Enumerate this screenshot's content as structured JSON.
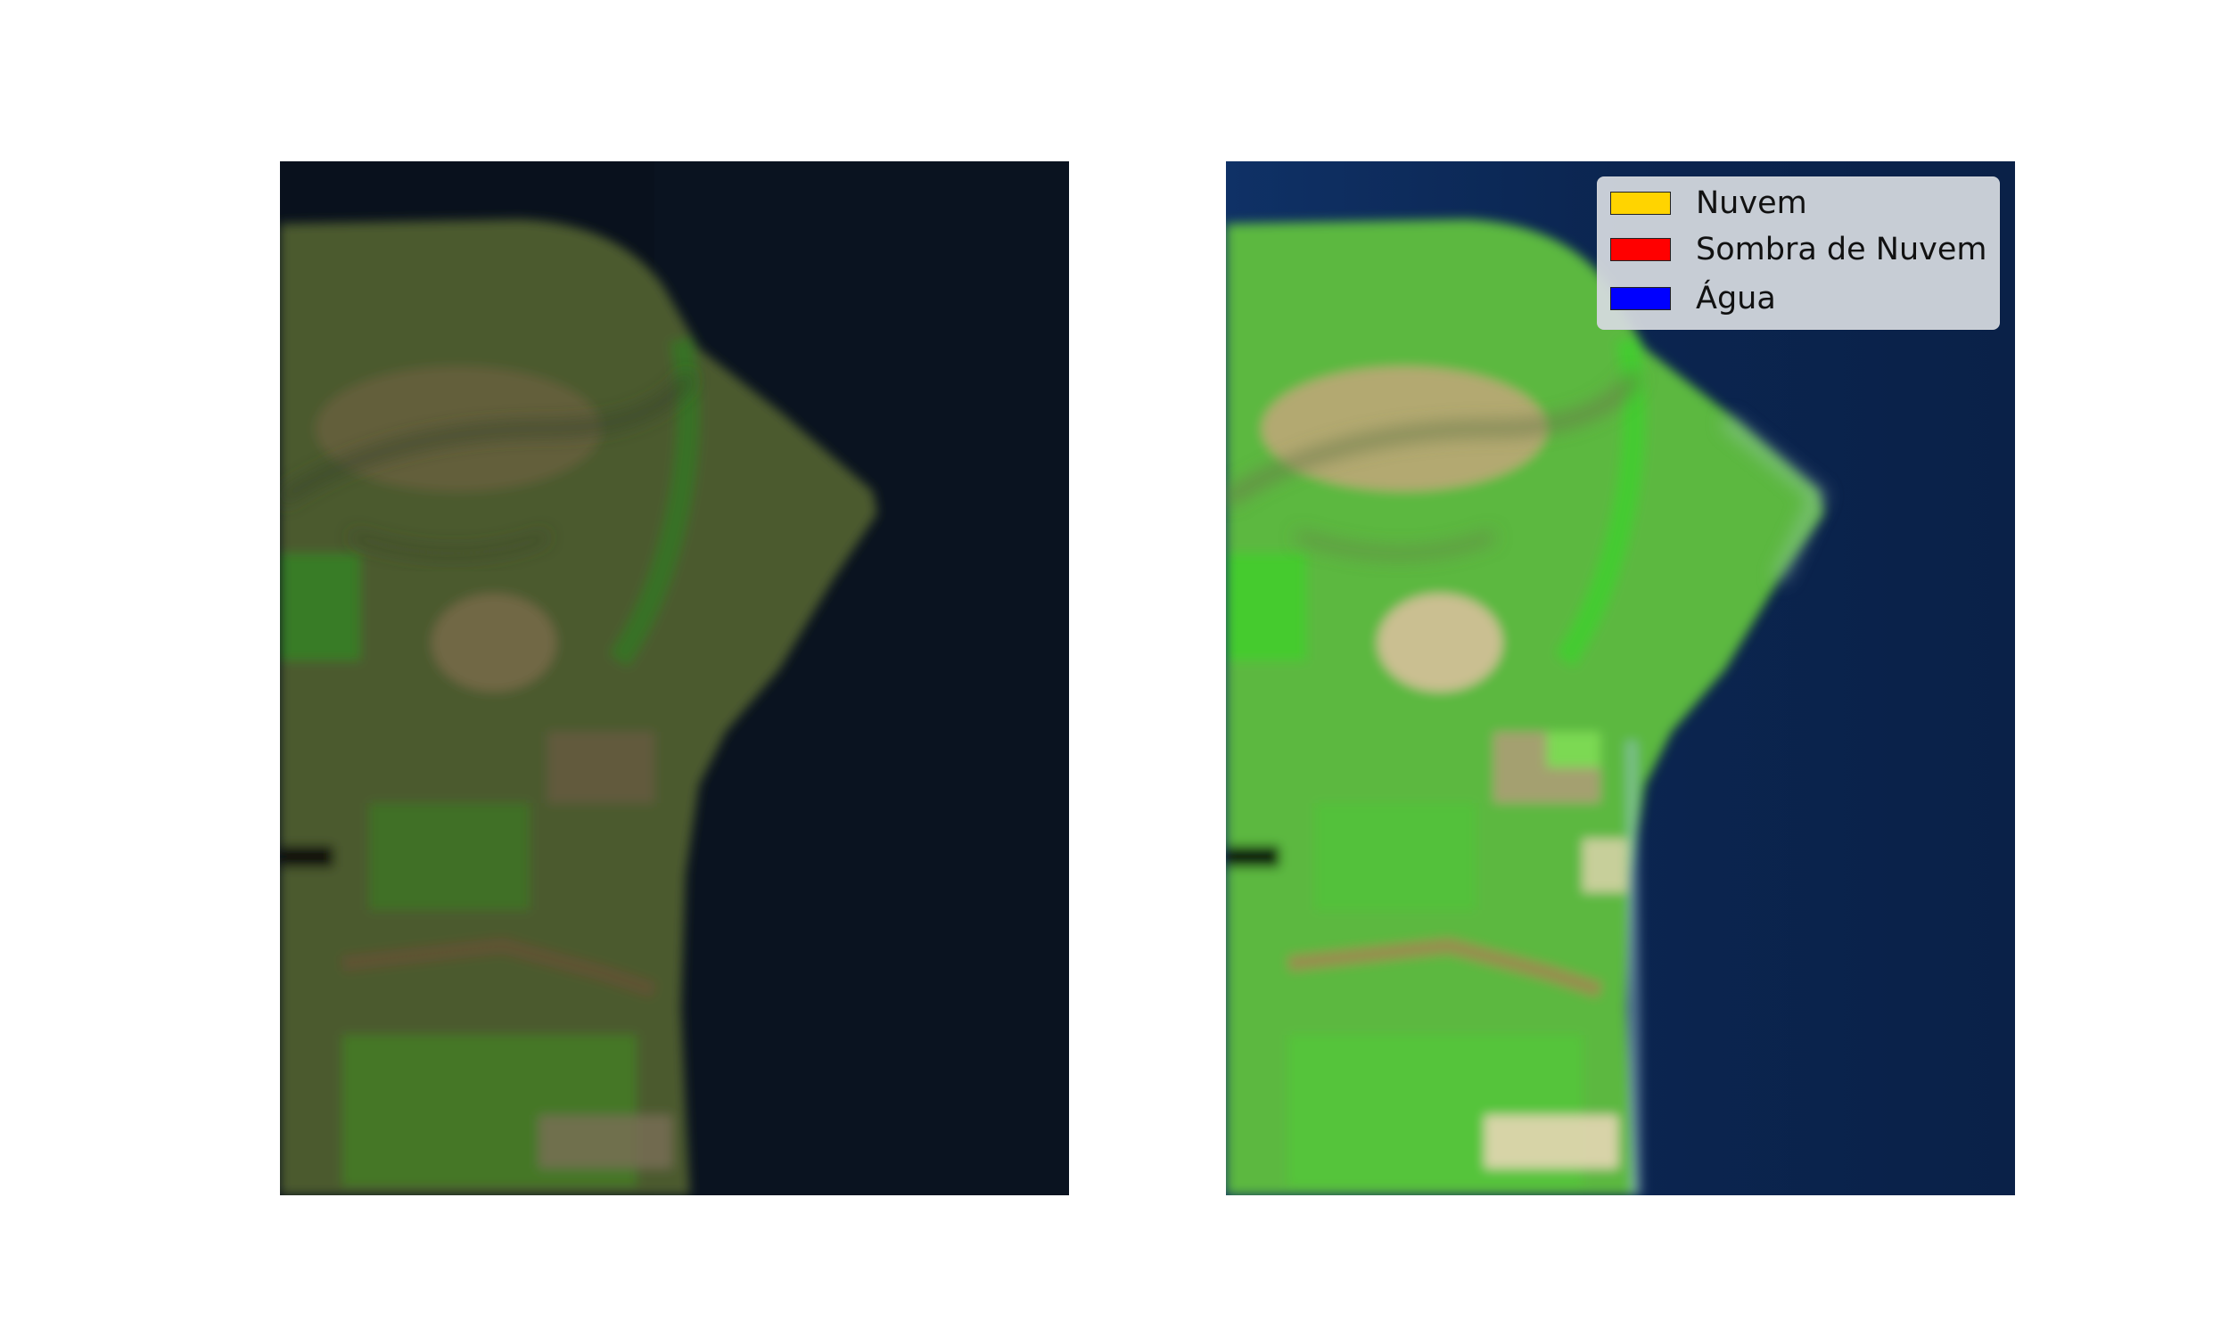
{
  "panels": [
    {
      "id": "left",
      "style": "dark",
      "water_color": "#09111d",
      "land_color": "#4a5a2c"
    },
    {
      "id": "right",
      "style": "enhanced",
      "water_color": "#0b2248",
      "land_color": "#58b83a"
    }
  ],
  "legend": {
    "items": [
      {
        "label": "Nuvem",
        "color": "#ffd400"
      },
      {
        "label": "Sombra de Nuvem",
        "color": "#ff0000"
      },
      {
        "label": "Água",
        "color": "#0000ff"
      }
    ]
  }
}
